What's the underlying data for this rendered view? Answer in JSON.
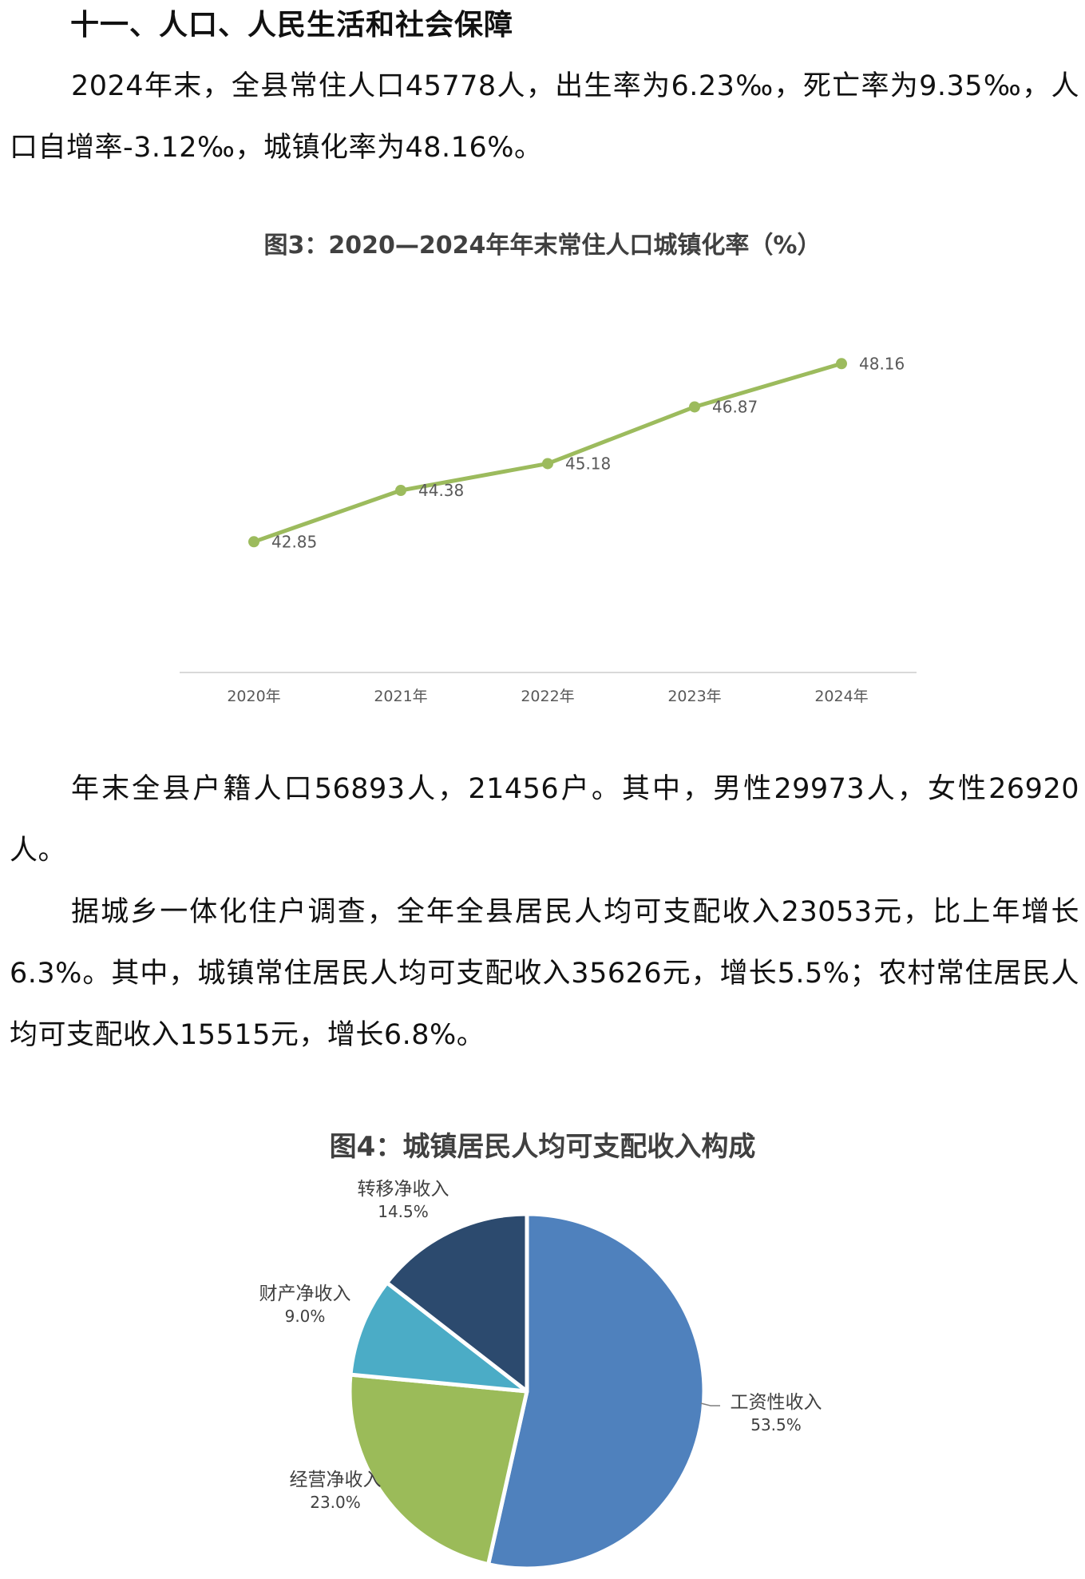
{
  "section": {
    "heading": "十一、人口、人民生活和社会保障"
  },
  "paragraphs": {
    "p1": "2024年末，全县常住人口45778人，出生率为6.23‰，死亡率为9.35‰，人口自增率-3.12‰，城镇化率为48.16%。",
    "p2": "年末全县户籍人口56893人，21456户。其中，男性29973人，女性26920人。",
    "p3": "据城乡一体化住户调查，全年全县居民人均可支配收入23053元，比上年增长6.3%。其中，城镇常住居民人均可支配收入35626元，增长5.5%；农村常住居民人均可支配收入15515元，增长6.8%。"
  },
  "colors": {
    "line": "#9cbb5d",
    "pie": [
      "#4f81bd",
      "#9bbb59",
      "#4bacc6",
      "#2c4a6e"
    ]
  },
  "chart_data": [
    {
      "type": "line",
      "title": "图3：2020—2024年年末常住人口城镇化率（%）",
      "categories": [
        "2020年",
        "2021年",
        "2022年",
        "2023年",
        "2024年"
      ],
      "values": [
        42.85,
        44.38,
        45.18,
        46.87,
        48.16
      ],
      "value_labels": [
        "42.85",
        "44.38",
        "45.18",
        "46.87",
        "48.16"
      ],
      "ylim": [
        39,
        49
      ],
      "grid": false,
      "legend": "none"
    },
    {
      "type": "pie",
      "title": "图4：城镇居民人均可支配收入构成",
      "slices": [
        {
          "label": "工资性收入",
          "value": 53.5,
          "pct": "53.5%"
        },
        {
          "label": "经营净收入",
          "value": 23.0,
          "pct": "23.0%"
        },
        {
          "label": "财产净收入",
          "value": 9.0,
          "pct": "9.0%"
        },
        {
          "label": "转移净收入",
          "value": 14.5,
          "pct": "14.5%"
        }
      ],
      "legend": "none"
    }
  ]
}
